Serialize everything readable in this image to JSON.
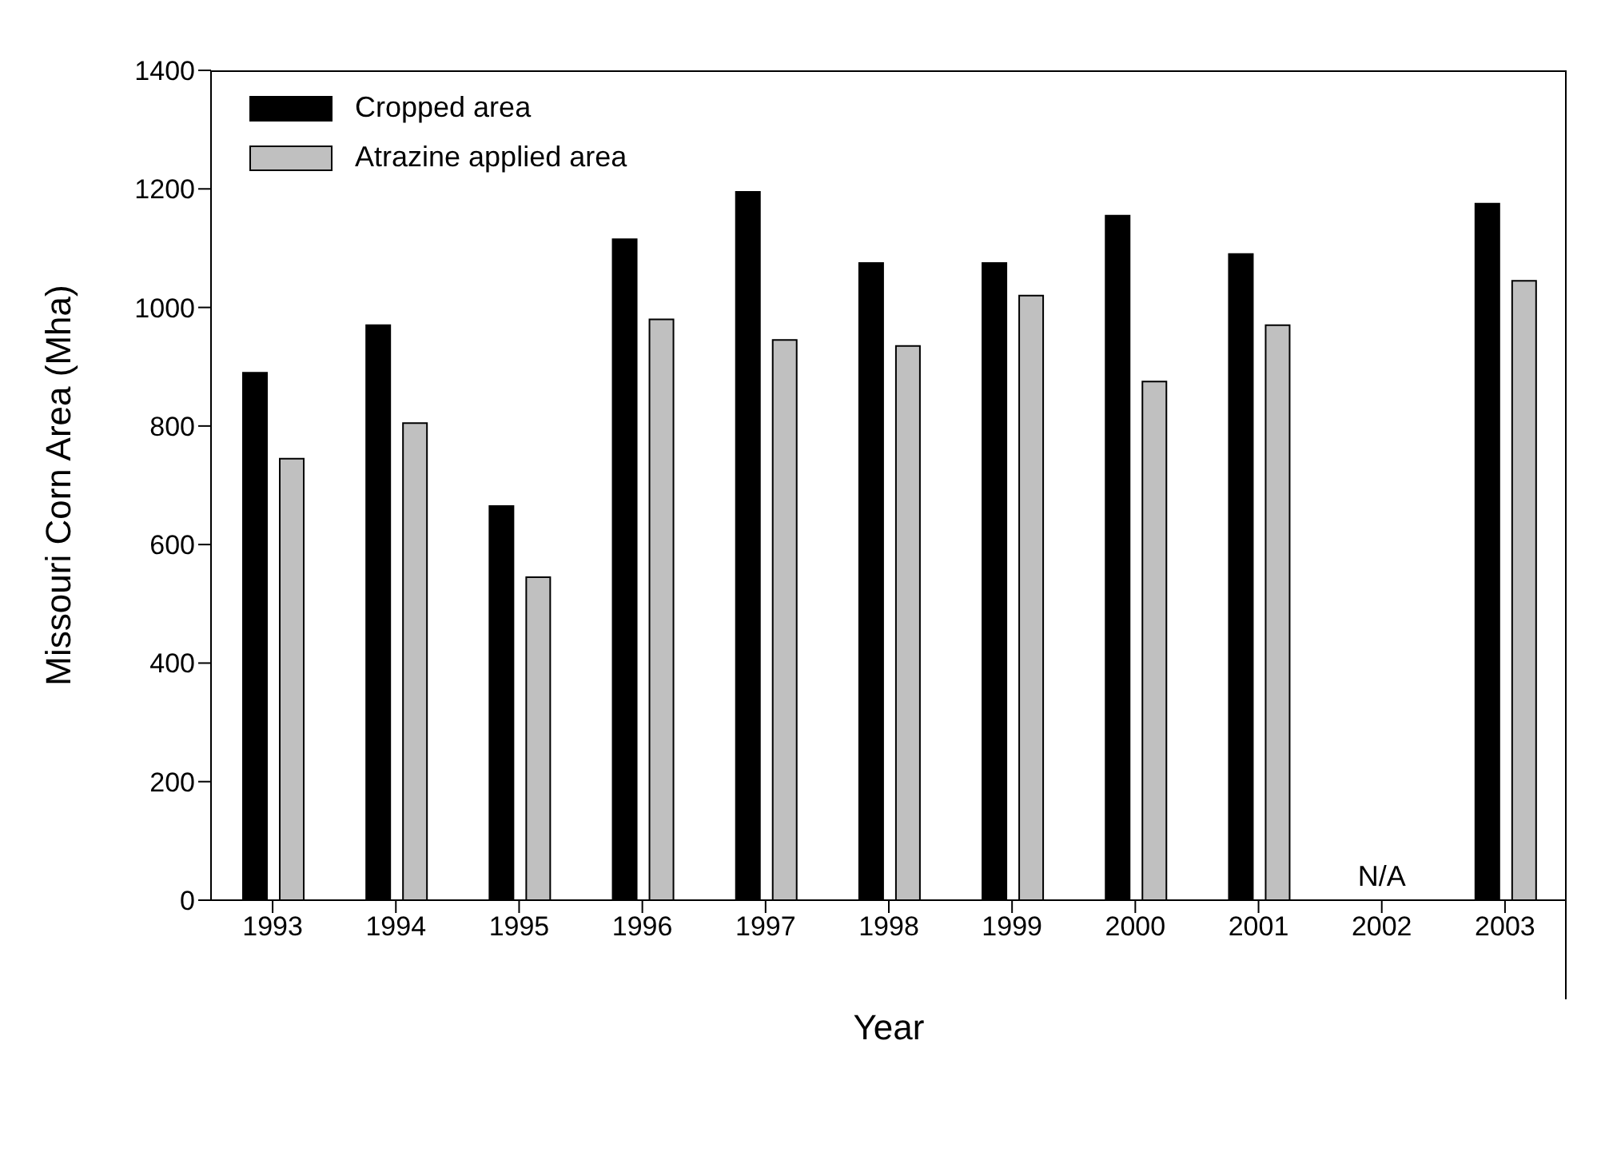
{
  "chart_data": {
    "type": "bar",
    "xlabel": "Year",
    "ylabel": "Missouri Corn Area (Mha)",
    "categories": [
      "1993",
      "1994",
      "1995",
      "1996",
      "1997",
      "1998",
      "1999",
      "2000",
      "2001",
      "2002",
      "2003"
    ],
    "series": [
      {
        "name": "Cropped area",
        "color": "#000000",
        "values": [
          890,
          970,
          665,
          1115,
          1195,
          1075,
          1075,
          1155,
          1090,
          null,
          1175
        ]
      },
      {
        "name": "Atrazine applied area",
        "color": "#c0c0c0",
        "values": [
          745,
          805,
          545,
          980,
          945,
          935,
          1020,
          875,
          970,
          null,
          1045
        ]
      }
    ],
    "ylim": [
      0,
      1400
    ],
    "yticks": [
      0,
      200,
      400,
      600,
      800,
      1000,
      1200,
      1400
    ],
    "annotations": [
      "N/A"
    ],
    "legend": "top left",
    "grid": false
  }
}
